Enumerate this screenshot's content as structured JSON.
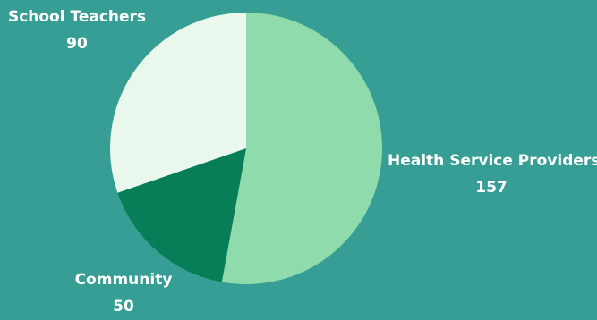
{
  "chart_data": {
    "type": "pie",
    "categories": [
      "Health Service Providers",
      "Community",
      "School Teachers"
    ],
    "values": [
      157,
      50,
      90
    ],
    "labels": [
      {
        "name": "Health Service Providers",
        "value": "157"
      },
      {
        "name": "Community",
        "value": "50"
      },
      {
        "name": "School Teachers",
        "value": "90"
      }
    ],
    "colors": [
      "#8fdbab",
      "#087e58",
      "#e9f7ed"
    ],
    "background": "#369e94",
    "start_angle_deg": 0,
    "direction": "clockwise",
    "legend": "none"
  }
}
